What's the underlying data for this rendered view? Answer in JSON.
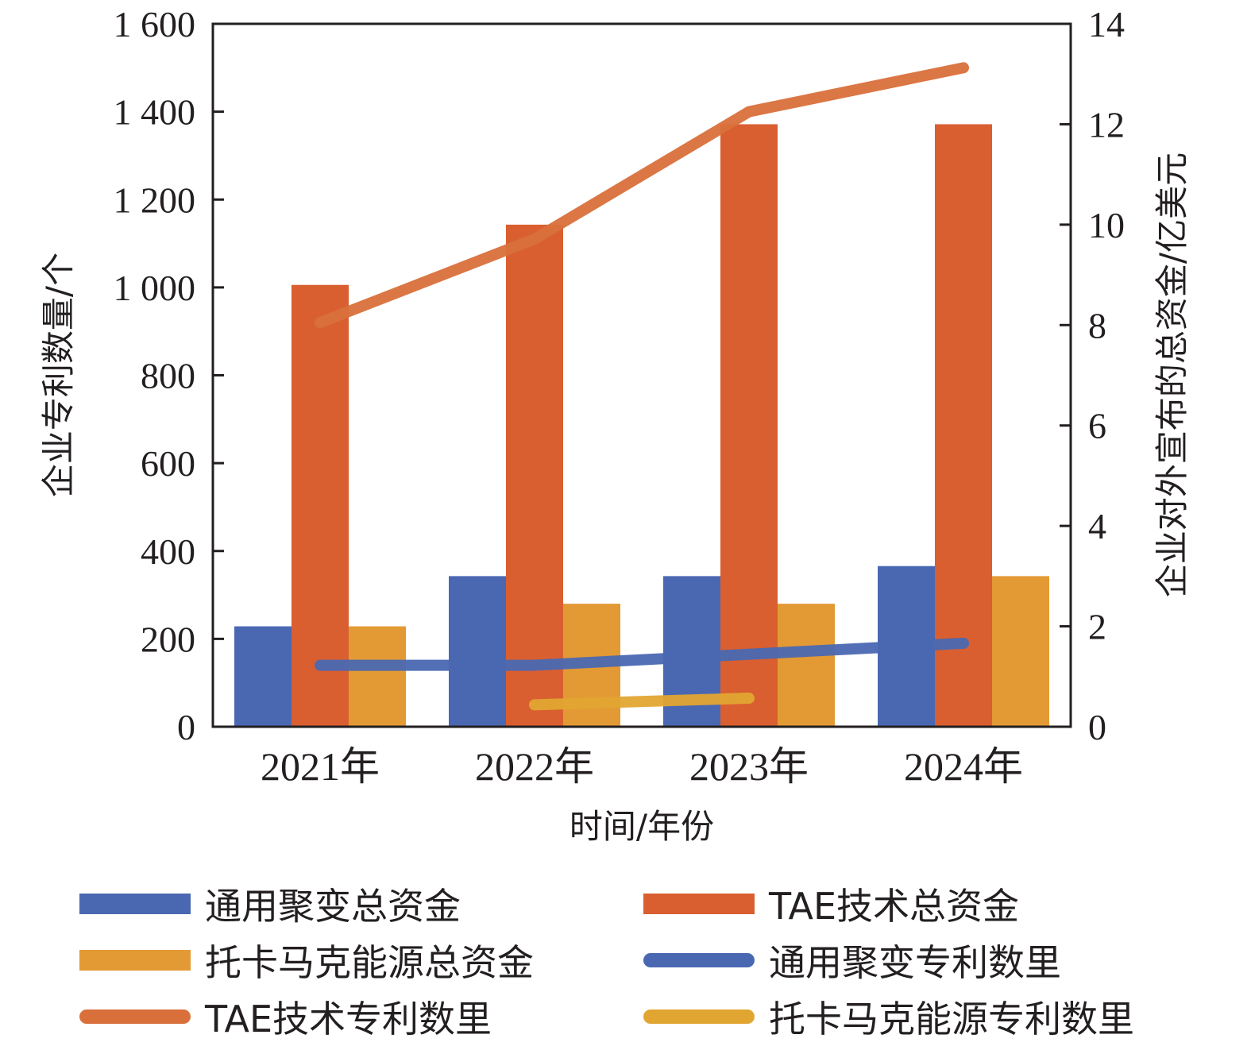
{
  "colors": {
    "blue": "#4a68b2",
    "orange": "#d95f30",
    "gold": "#e39a35",
    "blue_line": "#4a68b2",
    "orange_line": "#d9703b",
    "gold_line": "#e1a532",
    "axis": "#231f20"
  },
  "chart_data": {
    "type": "bar",
    "title": "",
    "xlabel": "时间/年份",
    "ylabel_left": "企业专利数量/个",
    "ylabel_right": "企业对外宣布的总资金/亿美元",
    "categories": [
      "2021年",
      "2022年",
      "2023年",
      "2024年"
    ],
    "ylim_left": [
      0,
      1600
    ],
    "ylim_right": [
      0,
      14
    ],
    "yticks_left": [
      {
        "value": 0,
        "label": "0"
      },
      {
        "value": 200,
        "label": "200"
      },
      {
        "value": 400,
        "label": "400"
      },
      {
        "value": 600,
        "label": "600"
      },
      {
        "value": 800,
        "label": "800"
      },
      {
        "value": 1000,
        "label": "1 000"
      },
      {
        "value": 1200,
        "label": "1 200"
      },
      {
        "value": 1400,
        "label": "1 400"
      },
      {
        "value": 1600,
        "label": "1 600"
      }
    ],
    "yticks_right": [
      {
        "value": 0,
        "label": "0"
      },
      {
        "value": 2,
        "label": "2"
      },
      {
        "value": 4,
        "label": "4"
      },
      {
        "value": 6,
        "label": "6"
      },
      {
        "value": 8,
        "label": "8"
      },
      {
        "value": 10,
        "label": "10"
      },
      {
        "value": 12,
        "label": "12"
      },
      {
        "value": 14,
        "label": "14"
      }
    ],
    "bar_series": [
      {
        "name": "通用聚变总资金",
        "axis": "right",
        "color_key": "blue",
        "values": [
          2.0,
          3.0,
          3.0,
          3.2
        ]
      },
      {
        "name": "TAE技术总资金",
        "axis": "right",
        "color_key": "orange",
        "values": [
          8.8,
          10.0,
          12.0,
          12.0
        ]
      },
      {
        "name": "托卡马克能源总资金",
        "axis": "right",
        "color_key": "gold",
        "values": [
          2.0,
          2.45,
          2.45,
          3.0
        ]
      }
    ],
    "line_series": [
      {
        "name": "通用聚变专利数里",
        "axis": "left",
        "color_key": "blue_line",
        "values": [
          140,
          140,
          165,
          190
        ]
      },
      {
        "name": "TAE技术专利数里",
        "axis": "left",
        "color_key": "orange_line",
        "values": [
          920,
          1110,
          1400,
          1500
        ]
      },
      {
        "name": "托卡马克能源专利数里",
        "axis": "left",
        "color_key": "gold_line",
        "values": [
          null,
          50,
          65,
          null
        ]
      }
    ],
    "grid": false,
    "legend_position": "bottom"
  },
  "legend": [
    {
      "label": "通用聚变总资金",
      "kind": "bar",
      "color_key": "blue"
    },
    {
      "label": "TAE技术总资金",
      "kind": "bar",
      "color_key": "orange"
    },
    {
      "label": "托卡马克能源总资金",
      "kind": "bar",
      "color_key": "gold"
    },
    {
      "label": "通用聚变专利数里",
      "kind": "line",
      "color_key": "blue_line"
    },
    {
      "label": "TAE技术专利数里",
      "kind": "line",
      "color_key": "orange_line"
    },
    {
      "label": "托卡马克能源专利数里",
      "kind": "line",
      "color_key": "gold_line"
    }
  ]
}
